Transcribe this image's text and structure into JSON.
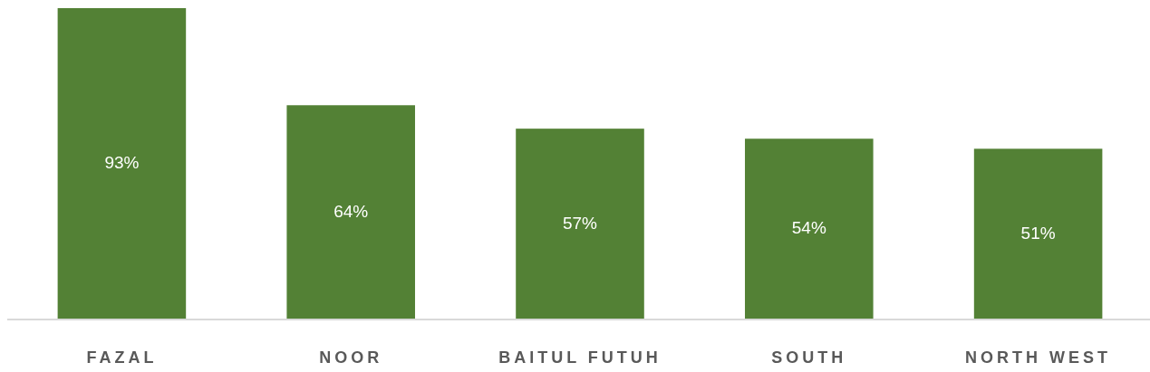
{
  "chart_data": {
    "type": "bar",
    "categories": [
      "FAZAL",
      "NOOR",
      "BAITUL FUTUH",
      "SOUTH",
      "NORTH WEST"
    ],
    "values": [
      93,
      64,
      57,
      54,
      51
    ],
    "value_labels": [
      "93%",
      "64%",
      "57%",
      "54%",
      "51%"
    ],
    "color": "#538135"
  }
}
